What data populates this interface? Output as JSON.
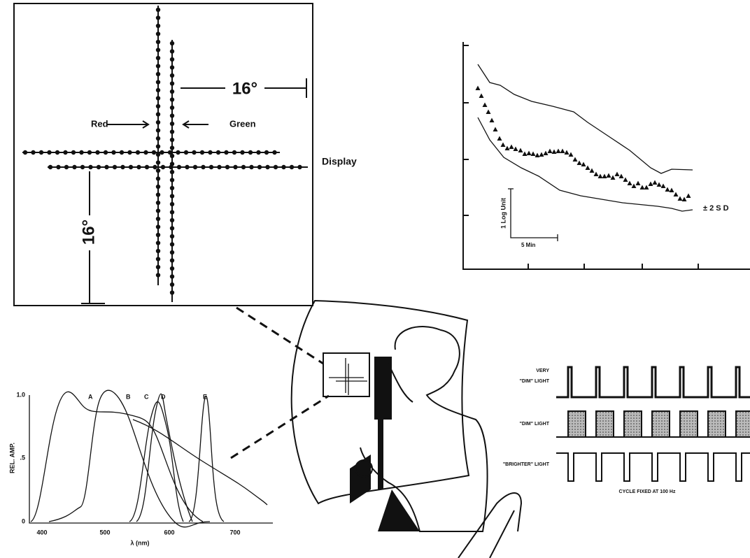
{
  "display_panel": {
    "angle_top": "16°",
    "angle_left": "16°",
    "red_label": "Red",
    "green_label": "Green",
    "display_label": "Display"
  },
  "adaptation_plot": {
    "y_scale": "1 Log Unit",
    "x_scale": "5 Min",
    "band_label": "± 2 S D"
  },
  "spectra_plot": {
    "y_axis_label": "REL. AMP.",
    "y_ticks": [
      "1.0",
      ".5",
      "0"
    ],
    "x_ticks": [
      "400",
      "500",
      "600",
      "700"
    ],
    "x_axis_label": "λ (nm)",
    "curve_labels": [
      "A",
      "B",
      "C",
      "D",
      "E"
    ]
  },
  "flicker_panel": {
    "rows": [
      [
        "VERY",
        "\"DIM\" LIGHT"
      ],
      [
        "\"DIM\" LIGHT"
      ],
      [
        "\"BRIGHTER\" LIGHT"
      ]
    ],
    "caption": "CYCLE FIXED AT 100 Hz"
  }
}
